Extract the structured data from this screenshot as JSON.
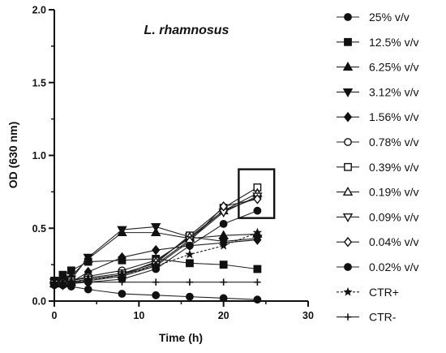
{
  "chart_data": {
    "type": "line",
    "title": "L. rhamnosus",
    "xlabel": "Time (h)",
    "ylabel": "OD (630 nm)",
    "xlim": [
      0,
      30
    ],
    "ylim": [
      0,
      2.0
    ],
    "xticks": [
      "0",
      "10",
      "20",
      "30"
    ],
    "yticks": [
      "0.0",
      "0.5",
      "1.0",
      "1.5",
      "2.0"
    ],
    "grid": false,
    "legend_position": "right",
    "annotation": "box highlighting the 24 h cluster",
    "x": [
      0,
      1,
      2,
      4,
      8,
      12,
      16,
      20,
      24
    ],
    "series": [
      {
        "name": "25% v/v",
        "marker": "circle-filled",
        "values": [
          0.13,
          0.11,
          0.1,
          0.08,
          0.05,
          0.04,
          0.03,
          0.02,
          0.01
        ]
      },
      {
        "name": "12.5% v/v",
        "marker": "square-filled",
        "values": [
          0.14,
          0.18,
          0.21,
          0.27,
          0.28,
          0.29,
          0.26,
          0.25,
          0.22
        ]
      },
      {
        "name": "6.25% v/v",
        "marker": "triangle-up-filled",
        "values": [
          0.14,
          0.15,
          0.17,
          0.29,
          0.47,
          0.47,
          0.43,
          0.45,
          0.46
        ]
      },
      {
        "name": "3.12% v/v",
        "marker": "triangle-down-filled",
        "values": [
          0.13,
          0.14,
          0.15,
          0.3,
          0.49,
          0.51,
          0.44,
          0.41,
          0.43
        ]
      },
      {
        "name": "1.56% v/v",
        "marker": "diamond-filled",
        "values": [
          0.12,
          0.12,
          0.13,
          0.2,
          0.3,
          0.35,
          0.38,
          0.4,
          0.42
        ]
      },
      {
        "name": "0.78% v/v",
        "marker": "circle-open",
        "values": [
          0.12,
          0.13,
          0.14,
          0.17,
          0.21,
          0.28,
          0.43,
          0.62,
          0.71
        ]
      },
      {
        "name": "0.39% v/v",
        "marker": "square-open",
        "values": [
          0.12,
          0.12,
          0.14,
          0.16,
          0.19,
          0.26,
          0.45,
          0.64,
          0.78
        ]
      },
      {
        "name": "0.19% v/v",
        "marker": "triangle-up-open",
        "values": [
          0.12,
          0.12,
          0.13,
          0.15,
          0.18,
          0.27,
          0.44,
          0.62,
          0.74
        ]
      },
      {
        "name": "0.09% v/v",
        "marker": "triangle-down-open",
        "values": [
          0.11,
          0.12,
          0.13,
          0.15,
          0.18,
          0.25,
          0.42,
          0.61,
          0.72
        ]
      },
      {
        "name": "0.04% v/v",
        "marker": "diamond-open",
        "values": [
          0.11,
          0.11,
          0.12,
          0.14,
          0.17,
          0.24,
          0.41,
          0.65,
          0.7
        ]
      },
      {
        "name": "0.02% v/v",
        "marker": "circle-filled",
        "values": [
          0.11,
          0.11,
          0.12,
          0.13,
          0.15,
          0.22,
          0.38,
          0.53,
          0.62
        ]
      },
      {
        "name": "CTR+",
        "marker": "star",
        "dashed": true,
        "values": [
          0.12,
          0.12,
          0.13,
          0.14,
          0.18,
          0.24,
          0.32,
          0.38,
          0.47
        ]
      },
      {
        "name": "CTR-",
        "marker": "plus",
        "values": [
          0.13,
          0.13,
          0.13,
          0.13,
          0.13,
          0.13,
          0.13,
          0.13,
          0.13
        ]
      }
    ]
  }
}
